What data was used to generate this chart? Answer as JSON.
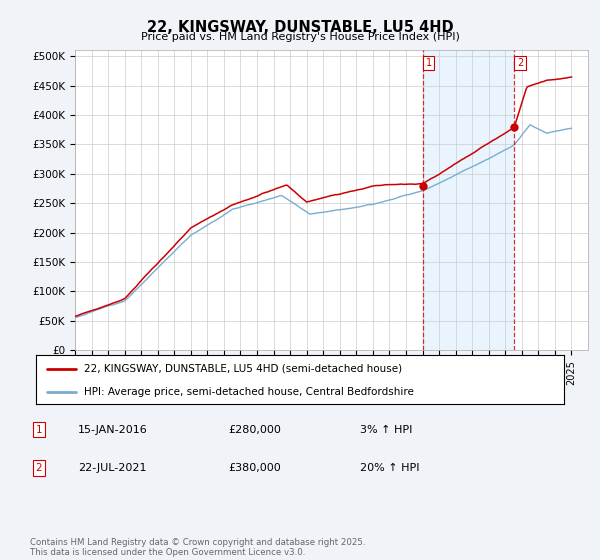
{
  "title": "22, KINGSWAY, DUNSTABLE, LU5 4HD",
  "subtitle": "Price paid vs. HM Land Registry's House Price Index (HPI)",
  "ylabel_ticks": [
    "£0",
    "£50K",
    "£100K",
    "£150K",
    "£200K",
    "£250K",
    "£300K",
    "£350K",
    "£400K",
    "£450K",
    "£500K"
  ],
  "ytick_values": [
    0,
    50000,
    100000,
    150000,
    200000,
    250000,
    300000,
    350000,
    400000,
    450000,
    500000
  ],
  "ylim": [
    0,
    510000
  ],
  "xlim_start": 1995.0,
  "xlim_end": 2026.0,
  "legend_line1": "22, KINGSWAY, DUNSTABLE, LU5 4HD (semi-detached house)",
  "legend_line2": "HPI: Average price, semi-detached house, Central Bedfordshire",
  "sale1_date": "15-JAN-2016",
  "sale1_price": "£280,000",
  "sale1_hpi": "3% ↑ HPI",
  "sale1_x": 2016.04,
  "sale1_y": 280000,
  "sale2_date": "22-JUL-2021",
  "sale2_price": "£380,000",
  "sale2_hpi": "20% ↑ HPI",
  "sale2_x": 2021.55,
  "sale2_y": 380000,
  "footer": "Contains HM Land Registry data © Crown copyright and database right 2025.\nThis data is licensed under the Open Government Licence v3.0.",
  "color_red": "#cc0000",
  "color_blue": "#7aadce",
  "color_shade": "#ddeeff",
  "background_color": "#f0f4f8",
  "plot_bg_color": "#ffffff",
  "grid_color": "#cccccc"
}
